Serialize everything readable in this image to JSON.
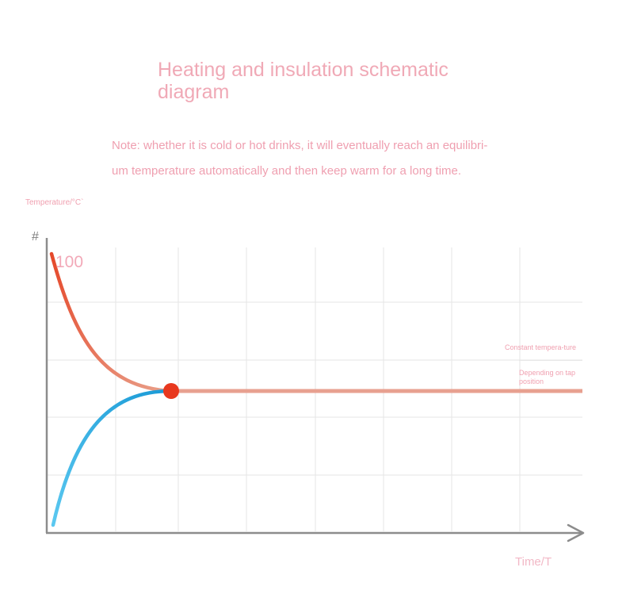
{
  "header": {
    "title": "Heating and insulation schematic diagram"
  },
  "note": {
    "line1": "Note: whether it is cold or hot drinks, it will eventually reach an equilibri-",
    "line2": "um temperature automatically and then keep warm for a long time."
  },
  "axes": {
    "y_label": "Temperature/°C`",
    "y_marker": "#",
    "y_top_value": "100",
    "x_label": "Time/T"
  },
  "annotations": {
    "constant_temperature": "Constant tempera-ture",
    "tap_position": "Depending on tap position"
  },
  "colors": {
    "hot_curve_start": "#e5482a",
    "hot_curve_end": "#e9a08a",
    "cold_curve_start": "#1a9ad6",
    "cold_curve_end": "#5bc8f0",
    "equilibrium_point": "#e8381e",
    "equilibrium_line": "#e8a090",
    "text_pink": "#f0a9b6"
  }
}
